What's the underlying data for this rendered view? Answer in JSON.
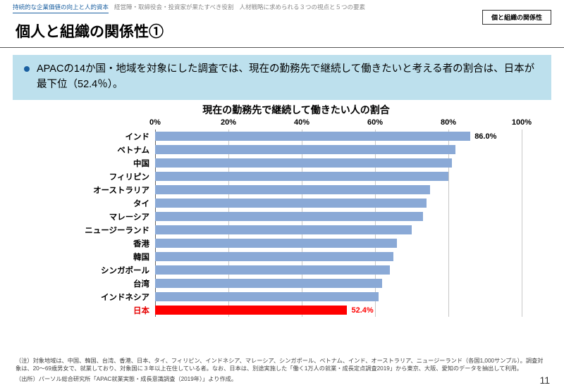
{
  "tabs": {
    "t1": "持続的な企業価値の向上と人的資本",
    "t2": "経営陣・取締役会・投資家が果たすべき役割",
    "t3": "人材戦略に求められる３つの視点と５つの要素"
  },
  "side_badge": "個と組織の関係性",
  "title": "個人と組織の関係性①",
  "callout_text": "APACの14か国・地域を対象にした調査では、現在の勤務先で継続して働きたいと考える者の割合は、日本が最下位（52.4％）。",
  "chart": {
    "title": "現在の勤務先で継続して働きたい人の割合",
    "xmin": 0,
    "xmax": 100,
    "xticks": [
      {
        "v": 0,
        "label": "0%"
      },
      {
        "v": 20,
        "label": "20%"
      },
      {
        "v": 40,
        "label": "40%"
      },
      {
        "v": 60,
        "label": "60%"
      },
      {
        "v": 80,
        "label": "80%"
      },
      {
        "v": 100,
        "label": "100%"
      }
    ],
    "bar_color": "#8aa9d6",
    "highlight_color": "#ff0000",
    "grid_color": "#c7c7c7",
    "bars": [
      {
        "label": "インド",
        "value": 86.0,
        "show_value": "86.0%"
      },
      {
        "label": "ベトナム",
        "value": 82.0
      },
      {
        "label": "中国",
        "value": 81.0
      },
      {
        "label": "フィリピン",
        "value": 80.0
      },
      {
        "label": "オーストラリア",
        "value": 75.0
      },
      {
        "label": "タイ",
        "value": 74.0
      },
      {
        "label": "マレーシア",
        "value": 73.0
      },
      {
        "label": "ニュージーランド",
        "value": 70.0
      },
      {
        "label": "香港",
        "value": 66.0
      },
      {
        "label": "韓国",
        "value": 65.0
      },
      {
        "label": "シンガポール",
        "value": 64.0
      },
      {
        "label": "台湾",
        "value": 62.0
      },
      {
        "label": "インドネシア",
        "value": 61.0
      },
      {
        "label": "日本",
        "value": 52.4,
        "show_value": "52.4%",
        "highlight": true
      }
    ]
  },
  "note_line1": "（注）対象地域は、中国、韓国、台湾、香港、日本、タイ、フィリピン、インドネシア、マレーシア、シンガポール、ベトナム、インド、オーストラリア、ニュージーランド（各国1,000サンプル）。調査対象は、20～69歳男女で、就業しており、対象国に３年以上在住している者。なお、日本は、別途実施した「働く1万人の就業・成長定点調査2019」から東京、大阪、愛知のデータを抽出して利用。",
  "note_line2": "（出所）パーソル総合研究所「APAC就業実態・成長意識調査（2019年）」より作成。",
  "page_number": "11"
}
